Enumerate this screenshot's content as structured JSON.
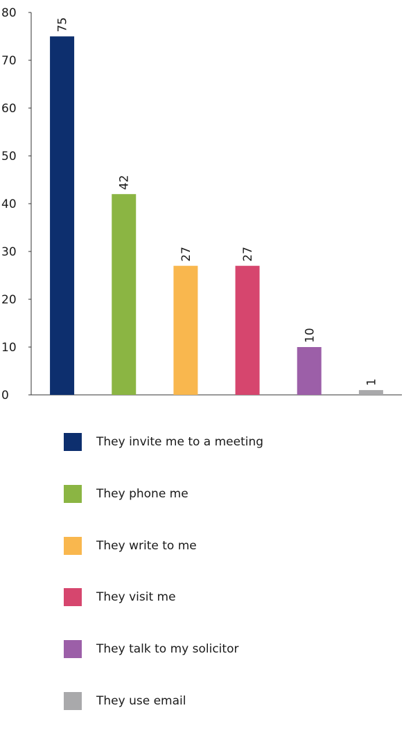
{
  "chart_data": {
    "type": "bar",
    "categories": [
      "They invite me to a meeting",
      "They phone me",
      "They write to me",
      "They visit me",
      "They talk to my solicitor",
      "They use email"
    ],
    "values": [
      75,
      42,
      27,
      27,
      10,
      1
    ],
    "data_labels": [
      "75",
      "42",
      "27",
      "27",
      "10",
      "1"
    ],
    "colors": [
      "#0d2f6e",
      "#8bb543",
      "#f9b74e",
      "#d6466e",
      "#9c5fa8",
      "#a9a9ab"
    ],
    "ylim": [
      0,
      80
    ],
    "yticks": [
      0,
      10,
      20,
      30,
      40,
      50,
      60,
      70,
      80
    ],
    "ytick_labels": [
      "0",
      "10",
      "20",
      "30",
      "40",
      "50",
      "60",
      "70",
      "80"
    ],
    "grid": false,
    "legend_position": "bottom",
    "title": "",
    "xlabel": "",
    "ylabel": ""
  }
}
